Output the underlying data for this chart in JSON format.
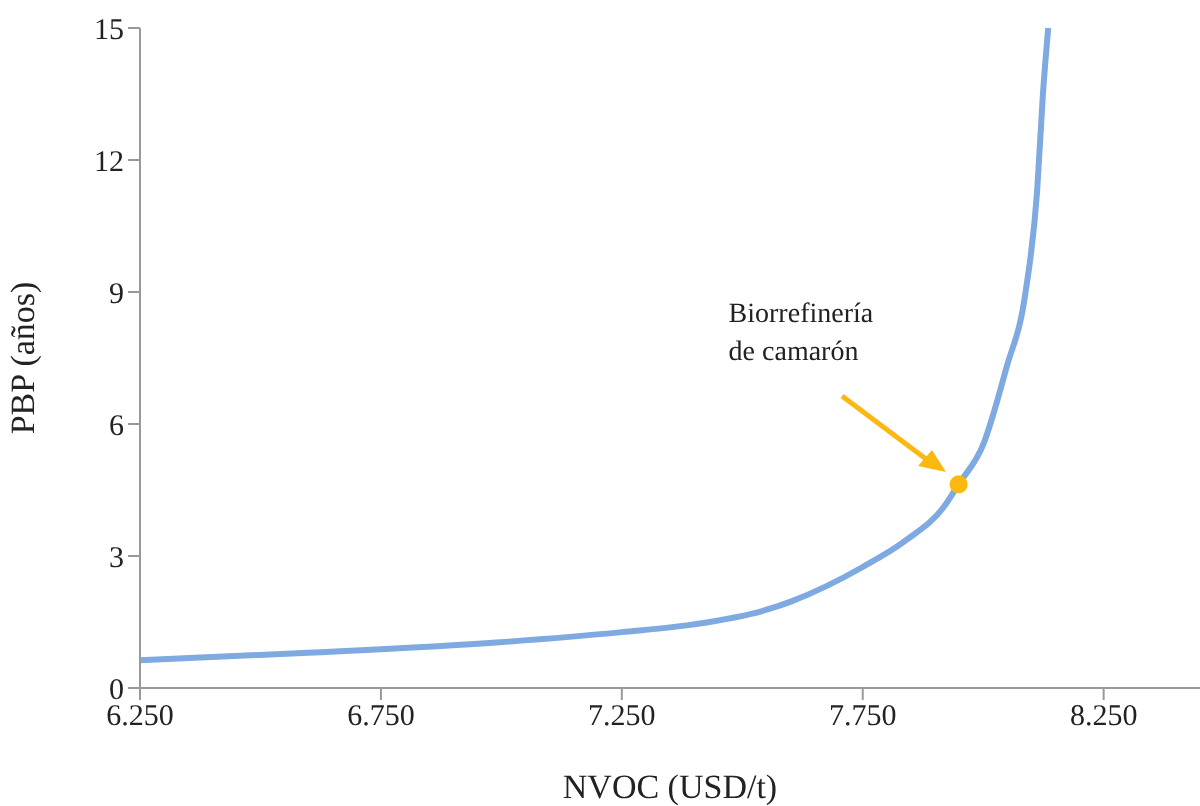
{
  "chart_data": {
    "type": "line",
    "xlabel": "NVOC (USD/t)",
    "ylabel": "PBP (años)",
    "xlim": [
      6250,
      8450
    ],
    "xticks": [
      {
        "value": 6250,
        "label": "6.250"
      },
      {
        "value": 6750,
        "label": "6.750"
      },
      {
        "value": 7250,
        "label": "7.250"
      },
      {
        "value": 7750,
        "label": "7.750"
      },
      {
        "value": 8250,
        "label": "8.250"
      }
    ],
    "ylim": [
      0,
      15
    ],
    "yticks": [
      0,
      3,
      6,
      9,
      12,
      15
    ],
    "grid": false,
    "line_style": "solid",
    "series": [
      {
        "color": "#7ea9e1",
        "marker": "none",
        "x": [
          6250,
          6599,
          6997,
          7250,
          7395,
          7554,
          7602,
          7750,
          7840,
          7920,
          7949,
          8000,
          8048,
          8088,
          8112,
          8124,
          8135
        ],
        "values": [
          0.63,
          0.8,
          1.04,
          1.27,
          1.44,
          1.79,
          1.97,
          2.75,
          3.36,
          4.14,
          4.63,
          5.53,
          7.27,
          9.0,
          11.3,
          13.5,
          15
        ]
      },
      {
        "type": "scatter",
        "marker": "circle",
        "color": "#fbb811",
        "x": [
          7949
        ],
        "values": [
          4.63
        ]
      }
    ],
    "annotations": [
      "Biorrefinería\nde camarón"
    ]
  }
}
